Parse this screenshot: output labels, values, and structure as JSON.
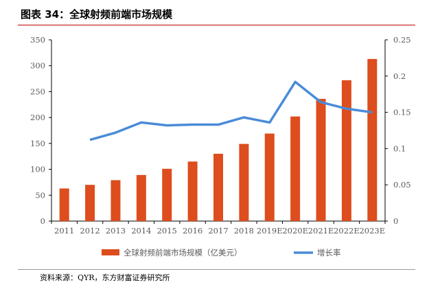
{
  "title": "图表 34：全球射频前端市场规模",
  "source": "资料来源：QYR，东方财富证券研究所",
  "chart_data": {
    "type": "bar",
    "categories": [
      "2011",
      "2012",
      "2013",
      "2014",
      "2015",
      "2016",
      "2017",
      "2018",
      "2019E",
      "2020E",
      "2021E",
      "2022E",
      "2023E"
    ],
    "series": [
      {
        "name": "全球射频前端市场规模（亿美元）",
        "type": "bar",
        "axis": "left",
        "color": "#dd4d1e",
        "values": [
          63,
          70,
          79,
          89,
          101,
          115,
          130,
          149,
          169,
          202,
          236,
          272,
          313
        ]
      },
      {
        "name": "增长率",
        "type": "line",
        "axis": "right",
        "color": "#4a8bd8",
        "values": [
          null,
          0.112,
          0.122,
          0.136,
          0.132,
          0.133,
          0.133,
          0.143,
          0.136,
          0.192,
          0.164,
          0.155,
          0.15
        ]
      }
    ],
    "y_left": {
      "ylim": [
        0,
        350
      ],
      "ticks": [
        0,
        50,
        100,
        150,
        200,
        250,
        300,
        350
      ]
    },
    "y_right": {
      "ylim": [
        0,
        0.25
      ],
      "ticks": [
        "0",
        "0.05",
        "0.1",
        "0.15",
        "0.2",
        "0.25"
      ]
    },
    "legend": "bottom",
    "grid": false
  }
}
